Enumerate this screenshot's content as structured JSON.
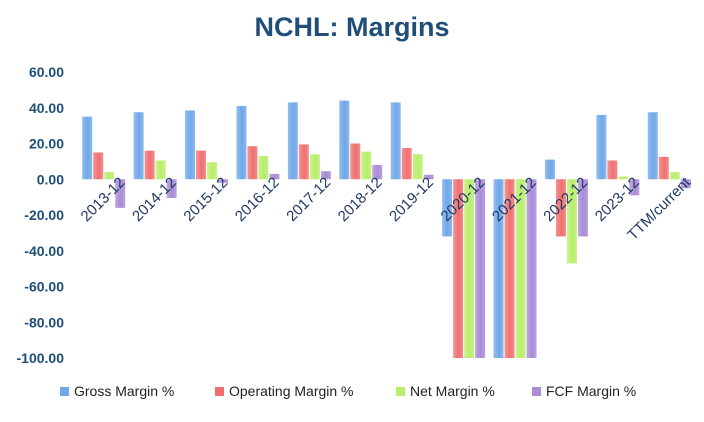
{
  "chart_data": {
    "type": "bar",
    "title": "NCHL: Margins",
    "xlabel": "",
    "ylabel": "",
    "ylim": [
      -100,
      60
    ],
    "yticks": [
      60,
      40,
      20,
      0,
      -20,
      -40,
      -60,
      -80,
      -100
    ],
    "ytick_labels": [
      "60.00",
      "40.00",
      "20.00",
      "0.00",
      "-20.00",
      "-40.00",
      "-60.00",
      "-80.00",
      "-100.00"
    ],
    "categories": [
      "2013-12",
      "2014-12",
      "2015-12",
      "2016-12",
      "2017-12",
      "2018-12",
      "2019-12",
      "2020-12",
      "2021-12",
      "2022-12",
      "2023-12",
      "TTM/current"
    ],
    "series": [
      {
        "name": "Gross Margin %",
        "color": "#6FA8E8",
        "values": [
          35,
          37.5,
          38.5,
          41,
          43,
          44,
          43,
          -32,
          -100,
          11,
          36,
          37.5
        ]
      },
      {
        "name": "Operating Margin %",
        "color": "#F07070",
        "values": [
          15,
          16,
          16,
          18.5,
          19.5,
          20,
          17.5,
          -100,
          -100,
          -32,
          10.5,
          12.5
        ]
      },
      {
        "name": "Net Margin %",
        "color": "#B8EE6A",
        "values": [
          4,
          10.5,
          9.5,
          13,
          14,
          15.5,
          14,
          -100,
          -100,
          -47,
          1.5,
          4
        ]
      },
      {
        "name": "FCF Margin %",
        "color": "#A98BD6",
        "values": [
          -16,
          -10.5,
          -2,
          3,
          4.5,
          8,
          2.5,
          -100,
          -100,
          -32,
          -9,
          -5
        ]
      }
    ],
    "legend_position": "bottom",
    "grid": false
  }
}
